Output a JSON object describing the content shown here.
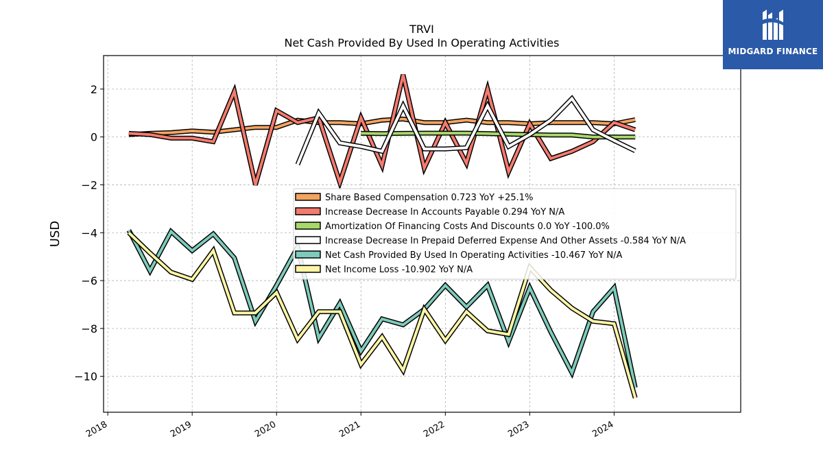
{
  "brand": {
    "name": "MIDGARD FINANCE"
  },
  "chart_data": {
    "type": "line",
    "title": "TRVI",
    "subtitle": "Net Cash Provided By Used In Operating Activities",
    "ylabel": "USD",
    "xlabel": "",
    "ylim": [
      -11.5,
      3.4
    ],
    "xlim": [
      2017.95,
      2025.5
    ],
    "yticks": [
      2,
      0,
      -2,
      -4,
      -6,
      -8,
      -10
    ],
    "ytick_labels": [
      "2",
      "0",
      "−2",
      "−4",
      "−6",
      "−8",
      "−10"
    ],
    "xticks": [
      2018,
      2019,
      2020,
      2021,
      2022,
      2023,
      2024
    ],
    "xtick_labels": [
      "2018",
      "2019",
      "2020",
      "2021",
      "2022",
      "2023",
      "2024"
    ],
    "grid": true,
    "legend_position": "center-right",
    "series": [
      {
        "name": "Share Based Compensation",
        "legend_label": "Share Based Compensation  0.723 YoY +25.1%",
        "color": "#f4a460",
        "x": [
          2018.25,
          2018.5,
          2018.75,
          2019.0,
          2019.25,
          2019.5,
          2019.75,
          2020.0,
          2020.25,
          2020.5,
          2020.75,
          2021.0,
          2021.25,
          2021.5,
          2021.75,
          2022.0,
          2022.25,
          2022.5,
          2022.75,
          2023.0,
          2023.25,
          2023.5,
          2023.75,
          2024.0,
          2024.25
        ],
        "y": [
          0.1,
          0.15,
          0.18,
          0.25,
          0.2,
          0.3,
          0.4,
          0.4,
          0.7,
          0.6,
          0.6,
          0.55,
          0.7,
          0.75,
          0.6,
          0.6,
          0.7,
          0.6,
          0.6,
          0.55,
          0.6,
          0.6,
          0.6,
          0.55,
          0.72
        ]
      },
      {
        "name": "Increase Decrease In Accounts Payable",
        "legend_label": "Increase Decrease In Accounts Payable  0.294 YoY N/A",
        "color": "#f47a6e",
        "x": [
          2018.25,
          2018.5,
          2018.75,
          2019.0,
          2019.25,
          2019.5,
          2019.75,
          2020.0,
          2020.25,
          2020.5,
          2020.75,
          2021.0,
          2021.25,
          2021.5,
          2021.75,
          2022.0,
          2022.25,
          2022.5,
          2022.75,
          2023.0,
          2023.25,
          2023.5,
          2023.75,
          2024.0,
          2024.25
        ],
        "y": [
          0.15,
          0.1,
          -0.05,
          -0.05,
          -0.2,
          1.9,
          -2.0,
          1.1,
          0.6,
          0.8,
          -1.9,
          0.8,
          -1.2,
          2.6,
          -1.3,
          0.6,
          -1.1,
          2.0,
          -1.45,
          0.55,
          -0.9,
          -0.6,
          -0.2,
          0.6,
          0.3
        ]
      },
      {
        "name": "Amortization Of Financing Costs And Discounts",
        "legend_label": "Amortization Of Financing Costs And Discounts  0.0 YoY -100.0%",
        "color": "#a8d86a",
        "x": [
          2021.0,
          2021.25,
          2021.5,
          2021.75,
          2022.0,
          2022.25,
          2022.5,
          2022.75,
          2023.0,
          2023.25,
          2023.5,
          2023.75,
          2024.0,
          2024.25
        ],
        "y": [
          0.15,
          0.14,
          0.15,
          0.16,
          0.16,
          0.16,
          0.14,
          0.12,
          0.1,
          0.08,
          0.08,
          0.0,
          0.0,
          0.0
        ]
      },
      {
        "name": "Increase Decrease In Prepaid Deferred Expense And Other Assets",
        "legend_label": "Increase Decrease In Prepaid Deferred Expense And Other Assets  -0.584 YoY N/A",
        "color": "#ffffff",
        "x": [
          2020.25,
          2020.5,
          2020.75,
          2021.0,
          2021.25,
          2021.5,
          2021.75,
          2022.0,
          2022.25,
          2022.5,
          2022.75,
          2023.0,
          2023.25,
          2023.5,
          2023.75,
          2024.0,
          2024.25
        ],
        "y": [
          -1.15,
          1.0,
          -0.25,
          -0.4,
          -0.6,
          1.3,
          -0.5,
          -0.5,
          -0.45,
          1.3,
          -0.4,
          0.1,
          0.7,
          1.6,
          0.3,
          -0.15,
          -0.58
        ]
      },
      {
        "name": "Net Cash Provided By Used In Operating Activities",
        "legend_label": "Net Cash Provided By Used In Operating Activities  -10.467 YoY N/A",
        "color": "#7ecbbb",
        "x": [
          2018.25,
          2018.5,
          2018.75,
          2019.0,
          2019.25,
          2019.5,
          2019.75,
          2020.0,
          2020.25,
          2020.5,
          2020.75,
          2021.0,
          2021.25,
          2021.5,
          2021.75,
          2022.0,
          2022.25,
          2022.5,
          2022.75,
          2023.0,
          2023.25,
          2023.5,
          2023.75,
          2024.0,
          2024.25
        ],
        "y": [
          -3.9,
          -5.6,
          -3.95,
          -4.75,
          -4.05,
          -5.05,
          -7.7,
          -6.2,
          -4.6,
          -8.4,
          -6.95,
          -8.95,
          -7.6,
          -7.85,
          -7.2,
          -6.2,
          -7.1,
          -6.2,
          -8.55,
          -6.3,
          -8.15,
          -9.85,
          -7.3,
          -6.3,
          -10.47
        ]
      },
      {
        "name": "Net Income Loss",
        "legend_label": "Net Income Loss  -10.902 YoY N/A",
        "color": "#fdf5a6",
        "x": [
          2018.25,
          2018.5,
          2018.75,
          2019.0,
          2019.25,
          2019.5,
          2019.75,
          2020.0,
          2020.25,
          2020.5,
          2020.75,
          2021.0,
          2021.25,
          2021.5,
          2021.75,
          2022.0,
          2022.25,
          2022.5,
          2022.75,
          2023.0,
          2023.25,
          2023.5,
          2023.75,
          2024.0,
          2024.25
        ],
        "y": [
          -4.0,
          -4.85,
          -5.65,
          -5.95,
          -4.75,
          -7.35,
          -7.35,
          -6.5,
          -8.45,
          -7.3,
          -7.3,
          -9.5,
          -8.35,
          -9.75,
          -7.2,
          -8.5,
          -7.3,
          -8.1,
          -8.25,
          -5.45,
          -6.4,
          -7.15,
          -7.7,
          -7.8,
          -10.9
        ]
      }
    ]
  }
}
